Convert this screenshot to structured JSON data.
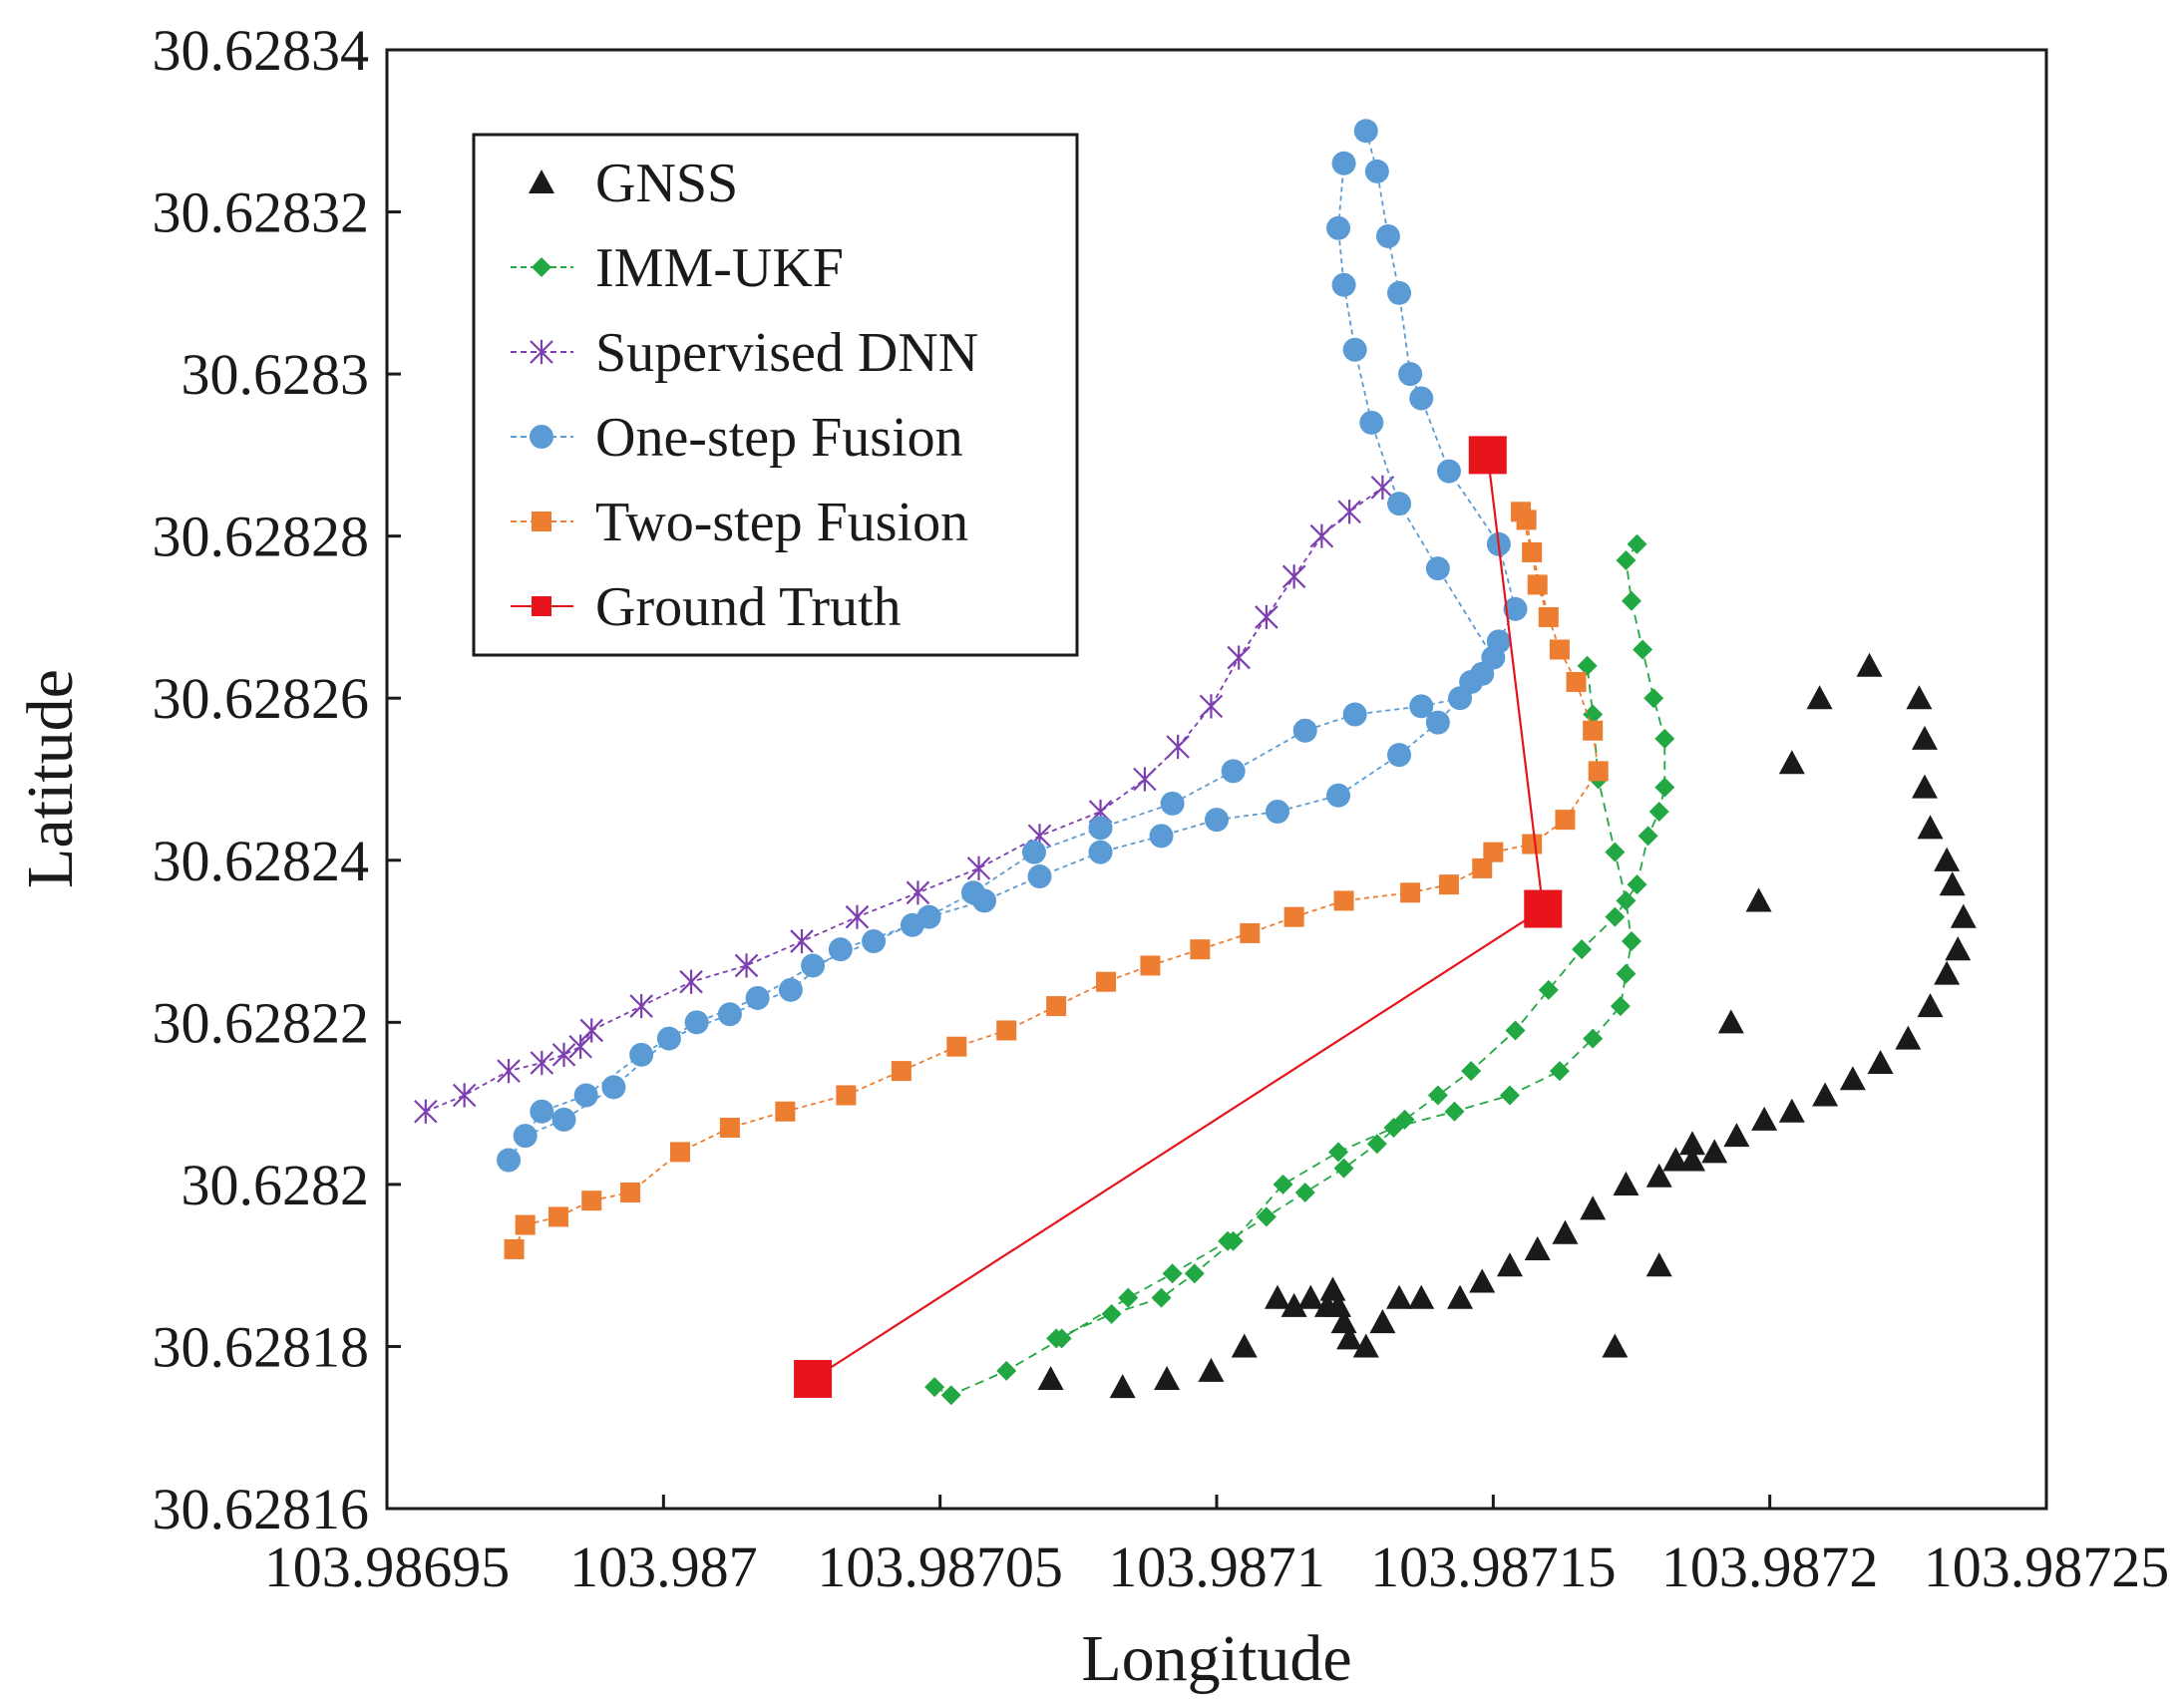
{
  "chart_data": {
    "type": "scatter",
    "xlabel": "Longitude",
    "ylabel": "Latitude",
    "xlim": [
      103.98695,
      103.98725
    ],
    "ylim": [
      30.62816,
      30.62834
    ],
    "xticks": [
      "103.98695",
      "103.987",
      "103.98705",
      "103.9871",
      "103.98715",
      "103.9872",
      "103.98725"
    ],
    "yticks": [
      "30.62816",
      "30.62818",
      "30.6282",
      "30.62822",
      "30.62824",
      "30.62826",
      "30.62828",
      "30.6283",
      "30.62832",
      "30.62834"
    ],
    "grid": false,
    "legend_position": "top-left",
    "series": [
      {
        "name": "GNSS",
        "color": "#1a1a1a",
        "marker": "triangle",
        "connect": false,
        "paths": [
          [
            [
              103.98707,
              30.628176
            ],
            [
              103.987083,
              30.628175
            ],
            [
              103.987091,
              30.628176
            ],
            [
              103.987099,
              30.628177
            ],
            [
              103.987105,
              30.62818
            ],
            [
              103.987111,
              30.628186
            ],
            [
              103.987114,
              30.628185
            ],
            [
              103.987117,
              30.628186
            ],
            [
              103.98712,
              30.628185
            ],
            [
              103.987121,
              30.628187
            ],
            [
              103.987122,
              30.628185
            ],
            [
              103.987123,
              30.628183
            ],
            [
              103.987124,
              30.628181
            ],
            [
              103.987127,
              30.62818
            ],
            [
              103.98713,
              30.628183
            ],
            [
              103.987133,
              30.628186
            ],
            [
              103.987137,
              30.628186
            ],
            [
              103.987144,
              30.628186
            ],
            [
              103.987148,
              30.628188
            ],
            [
              103.987153,
              30.62819
            ],
            [
              103.987158,
              30.628192
            ],
            [
              103.987163,
              30.628194
            ],
            [
              103.987168,
              30.628197
            ],
            [
              103.987174,
              30.6282
            ],
            [
              103.98718,
              30.628201
            ],
            [
              103.987183,
              30.628203
            ],
            [
              103.987186,
              30.628203
            ],
            [
              103.98719,
              30.628204
            ],
            [
              103.987194,
              30.628206
            ],
            [
              103.987199,
              30.628208
            ],
            [
              103.987204,
              30.628209
            ],
            [
              103.98721,
              30.628211
            ],
            [
              103.987215,
              30.628213
            ],
            [
              103.98722,
              30.628215
            ],
            [
              103.987225,
              30.628218
            ],
            [
              103.987229,
              30.628222
            ],
            [
              103.987232,
              30.628226
            ],
            [
              103.987234,
              30.628229
            ],
            [
              103.987235,
              30.628233
            ],
            [
              103.987233,
              30.628237
            ],
            [
              103.987232,
              30.62824
            ],
            [
              103.987229,
              30.628244
            ],
            [
              103.987228,
              30.628249
            ],
            [
              103.987228,
              30.628255
            ],
            [
              103.987227,
              30.62826
            ],
            [
              103.987218,
              30.628264
            ],
            [
              103.987209,
              30.62826
            ],
            [
              103.987204,
              30.628252
            ],
            [
              103.987198,
              30.628235
            ],
            [
              103.987193,
              30.62822
            ],
            [
              103.987186,
              30.628205
            ],
            [
              103.98718,
              30.62819
            ],
            [
              103.987172,
              30.62818
            ]
          ]
        ]
      },
      {
        "name": "IMM-UKF",
        "color": "#22a843",
        "marker": "diamond",
        "connect": true,
        "paths": [
          [
            [
              103.987049,
              30.628175
            ],
            [
              103.987052,
              30.628174
            ],
            [
              103.987062,
              30.628177
            ],
            [
              103.987072,
              30.628181
            ],
            [
              103.987084,
              30.628186
            ],
            [
              103.987092,
              30.628189
            ],
            [
              103.987102,
              30.628193
            ],
            [
              103.987109,
              30.628196
            ],
            [
              103.987116,
              30.628199
            ],
            [
              103.987123,
              30.628202
            ],
            [
              103.987129,
              30.628205
            ],
            [
              103.987134,
              30.628208
            ],
            [
              103.98714,
              30.628211
            ],
            [
              103.987146,
              30.628214
            ],
            [
              103.987154,
              30.628219
            ],
            [
              103.98716,
              30.628224
            ],
            [
              103.987166,
              30.628229
            ],
            [
              103.987172,
              30.628233
            ],
            [
              103.987176,
              30.628237
            ],
            [
              103.987178,
              30.628243
            ],
            [
              103.98718,
              30.628246
            ],
            [
              103.987181,
              30.628249
            ],
            [
              103.987181,
              30.628255
            ],
            [
              103.987179,
              30.62826
            ],
            [
              103.987177,
              30.628266
            ],
            [
              103.987175,
              30.628272
            ],
            [
              103.987174,
              30.628277
            ],
            [
              103.987176,
              30.628279
            ]
          ],
          [
            [
              103.987071,
              30.628181
            ],
            [
              103.987081,
              30.628184
            ],
            [
              103.98709,
              30.628186
            ],
            [
              103.987096,
              30.628189
            ],
            [
              103.987103,
              30.628193
            ],
            [
              103.987112,
              30.6282
            ],
            [
              103.987122,
              30.628204
            ],
            [
              103.987132,
              30.628207
            ],
            [
              103.987143,
              30.628209
            ],
            [
              103.987153,
              30.628211
            ],
            [
              103.987162,
              30.628214
            ],
            [
              103.987168,
              30.628218
            ],
            [
              103.987173,
              30.628222
            ],
            [
              103.987174,
              30.628226
            ],
            [
              103.987175,
              30.62823
            ],
            [
              103.987174,
              30.628235
            ],
            [
              103.987172,
              30.628241
            ],
            [
              103.987169,
              30.62825
            ],
            [
              103.987168,
              30.628258
            ],
            [
              103.987167,
              30.628264
            ]
          ]
        ]
      },
      {
        "name": "Supervised DNN",
        "color": "#7d3fb0",
        "marker": "x",
        "connect": true,
        "paths": [
          [
            [
              103.986957,
              30.628209
            ],
            [
              103.986964,
              30.628211
            ],
            [
              103.986972,
              30.628214
            ],
            [
              103.986978,
              30.628215
            ],
            [
              103.986982,
              30.628216
            ],
            [
              103.986985,
              30.628217
            ],
            [
              103.986987,
              30.628219
            ],
            [
              103.986996,
              30.628222
            ],
            [
              103.987005,
              30.628225
            ],
            [
              103.987015,
              30.628227
            ],
            [
              103.987025,
              30.62823
            ],
            [
              103.987035,
              30.628233
            ],
            [
              103.987046,
              30.628236
            ],
            [
              103.987057,
              30.628239
            ],
            [
              103.987068,
              30.628243
            ],
            [
              103.987079,
              30.628246
            ],
            [
              103.987087,
              30.62825
            ],
            [
              103.987093,
              30.628254
            ],
            [
              103.987099,
              30.628259
            ],
            [
              103.987104,
              30.628265
            ],
            [
              103.987109,
              30.62827
            ],
            [
              103.987114,
              30.628275
            ],
            [
              103.987119,
              30.62828
            ],
            [
              103.987124,
              30.628283
            ],
            [
              103.98713,
              30.628286
            ]
          ]
        ]
      },
      {
        "name": "One-step Fusion",
        "color": "#5b9bd5",
        "marker": "circle",
        "connect": true,
        "paths": [
          [
            [
              103.986972,
              30.628203
            ],
            [
              103.986978,
              30.628209
            ],
            [
              103.986986,
              30.628211
            ],
            [
              103.986996,
              30.628216
            ],
            [
              103.987006,
              30.62822
            ],
            [
              103.987017,
              30.628223
            ],
            [
              103.987027,
              30.628227
            ],
            [
              103.987038,
              30.62823
            ],
            [
              103.987048,
              30.628233
            ],
            [
              103.987058,
              30.628235
            ],
            [
              103.987068,
              30.628238
            ],
            [
              103.987079,
              30.628241
            ],
            [
              103.98709,
              30.628243
            ],
            [
              103.9871,
              30.628245
            ],
            [
              103.987111,
              30.628246
            ],
            [
              103.987122,
              30.628248
            ],
            [
              103.987133,
              30.628253
            ],
            [
              103.98714,
              30.628257
            ],
            [
              103.987148,
              30.628263
            ],
            [
              103.987151,
              30.628267
            ],
            [
              103.987154,
              30.628271
            ],
            [
              103.987151,
              30.628279
            ],
            [
              103.987142,
              30.628288
            ],
            [
              103.987137,
              30.628297
            ],
            [
              103.987135,
              30.6283
            ],
            [
              103.987133,
              30.62831
            ],
            [
              103.987131,
              30.628317
            ],
            [
              103.987129,
              30.628325
            ],
            [
              103.987127,
              30.62833
            ]
          ],
          [
            [
              103.986975,
              30.628206
            ],
            [
              103.986982,
              30.628208
            ],
            [
              103.986991,
              30.628212
            ],
            [
              103.987001,
              30.628218
            ],
            [
              103.987012,
              30.628221
            ],
            [
              103.987023,
              30.628224
            ],
            [
              103.987032,
              30.628229
            ],
            [
              103.987045,
              30.628232
            ],
            [
              103.987056,
              30.628236
            ],
            [
              103.987067,
              30.628241
            ],
            [
              103.987079,
              30.628244
            ],
            [
              103.987092,
              30.628247
            ],
            [
              103.987103,
              30.628251
            ],
            [
              103.987116,
              30.628256
            ],
            [
              103.987125,
              30.628258
            ],
            [
              103.987137,
              30.628259
            ],
            [
              103.987144,
              30.62826
            ],
            [
              103.987146,
              30.628262
            ],
            [
              103.98715,
              30.628265
            ],
            [
              103.98714,
              30.628276
            ],
            [
              103.987133,
              30.628284
            ],
            [
              103.987128,
              30.628294
            ],
            [
              103.987125,
              30.628303
            ],
            [
              103.987123,
              30.628311
            ],
            [
              103.987122,
              30.628318
            ],
            [
              103.987123,
              30.628326
            ]
          ]
        ]
      },
      {
        "name": "Two-step Fusion",
        "color": "#ed7d31",
        "marker": "square",
        "connect": true,
        "paths": [
          [
            [
              103.986973,
              30.628192
            ],
            [
              103.986975,
              30.628195
            ],
            [
              103.986981,
              30.628196
            ],
            [
              103.986987,
              30.628198
            ],
            [
              103.986994,
              30.628199
            ],
            [
              103.987003,
              30.628204
            ],
            [
              103.987012,
              30.628207
            ],
            [
              103.987022,
              30.628209
            ],
            [
              103.987033,
              30.628211
            ],
            [
              103.987043,
              30.628214
            ],
            [
              103.987053,
              30.628217
            ],
            [
              103.987062,
              30.628219
            ],
            [
              103.987071,
              30.628222
            ],
            [
              103.98708,
              30.628225
            ],
            [
              103.987088,
              30.628227
            ],
            [
              103.987097,
              30.628229
            ],
            [
              103.987106,
              30.628231
            ],
            [
              103.987114,
              30.628233
            ],
            [
              103.987123,
              30.628235
            ],
            [
              103.987135,
              30.628236
            ],
            [
              103.987142,
              30.628237
            ],
            [
              103.987148,
              30.628239
            ],
            [
              103.98715,
              30.628241
            ],
            [
              103.987157,
              30.628242
            ],
            [
              103.987163,
              30.628245
            ],
            [
              103.987169,
              30.628251
            ],
            [
              103.987168,
              30.628256
            ],
            [
              103.987165,
              30.628262
            ],
            [
              103.987162,
              30.628266
            ],
            [
              103.987158,
              30.628274
            ],
            [
              103.987156,
              30.628282
            ],
            [
              103.987155,
              30.628283
            ],
            [
              103.987157,
              30.628278
            ],
            [
              103.98716,
              30.62827
            ]
          ]
        ]
      },
      {
        "name": "Ground Truth",
        "color": "#e8141c",
        "marker": "bigsquare",
        "connect": true,
        "line_style": "solid",
        "paths": [
          [
            [
              103.987027,
              30.628176
            ],
            [
              103.987159,
              30.628234
            ],
            [
              103.987149,
              30.62829
            ]
          ]
        ]
      }
    ]
  }
}
